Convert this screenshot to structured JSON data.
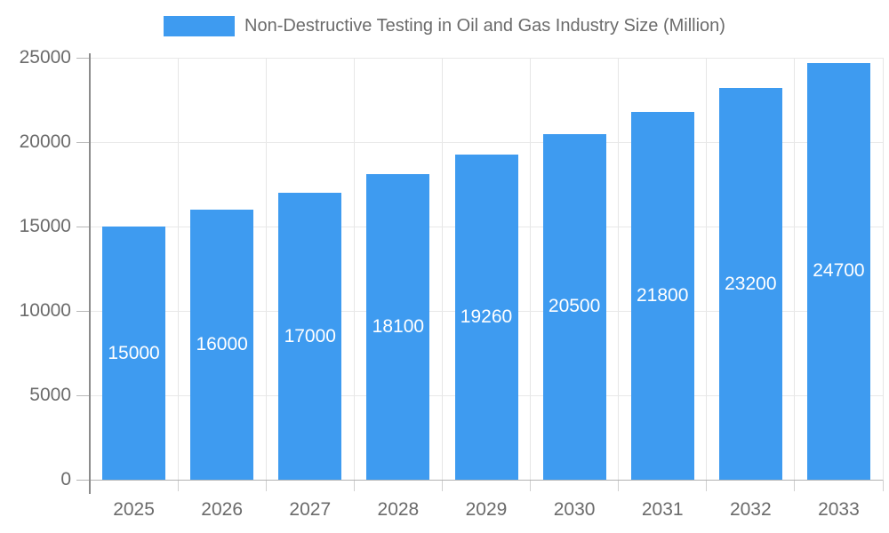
{
  "legend": {
    "label": "Non-Destructive Testing in Oil and Gas Industry Size (Million)"
  },
  "colors": {
    "bar": "#3E9BF0",
    "bar_label": "#ffffff",
    "axis_text": "#6b6b6b",
    "grid": "#e8e8e8",
    "axis_line": "#8c8c8c"
  },
  "chart_data": {
    "type": "bar",
    "title": "Non-Destructive Testing in Oil and Gas Industry Size (Million)",
    "categories": [
      "2025",
      "2026",
      "2027",
      "2028",
      "2029",
      "2030",
      "2031",
      "2032",
      "2033"
    ],
    "series": [
      {
        "name": "Non-Destructive Testing in Oil and Gas Industry Size (Million)",
        "values": [
          15000,
          16000,
          17000,
          18100,
          19260,
          20500,
          21800,
          23200,
          24700
        ]
      }
    ],
    "xlabel": "",
    "ylabel": "",
    "ylim": [
      0,
      25000
    ],
    "yticks": [
      0,
      5000,
      10000,
      15000,
      20000,
      25000
    ],
    "grid": true,
    "legend_position": "top",
    "bar_labels_shown": true,
    "bar_label_position": "center-of-bar"
  }
}
